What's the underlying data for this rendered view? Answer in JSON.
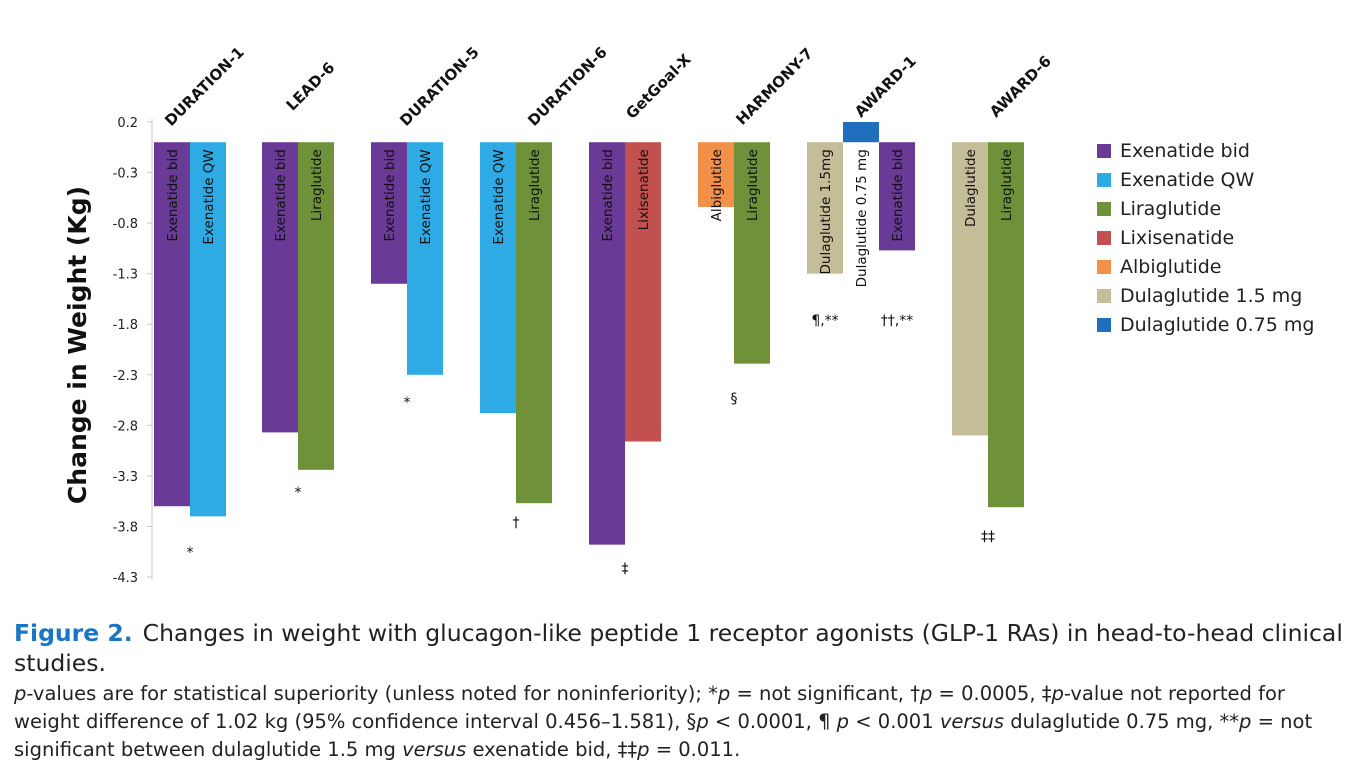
{
  "chart_data": {
    "type": "bar",
    "ylabel": "Change in Weight (Kg)",
    "ylim": [
      -4.3,
      0.2
    ],
    "yticks": [
      "0.2",
      "-0.3",
      "-0.8",
      "-1.3",
      "-1.8",
      "-2.3",
      "-2.8",
      "-3.3",
      "-3.8",
      "-4.3"
    ],
    "grid": false,
    "legend_position": "right",
    "series": [
      {
        "name": "Exenatide bid",
        "color": "#6a3a97"
      },
      {
        "name": "Exenatide QW",
        "color": "#2eaae4"
      },
      {
        "name": "Liraglutide",
        "color": "#6f913a"
      },
      {
        "name": "Lixisenatide",
        "color": "#c2504e"
      },
      {
        "name": "Albiglutide",
        "color": "#f28f49"
      },
      {
        "name": "Dulaglutide 1.5 mg",
        "color": "#c5bc98"
      },
      {
        "name": "Dulaglutide 0.75 mg",
        "color": "#1f6fbd"
      }
    ],
    "studies": [
      {
        "name": "DURATION-1",
        "annotation": "*",
        "bars": [
          {
            "series": 0,
            "label": "Exenatide bid",
            "value": -3.6
          },
          {
            "series": 1,
            "label": "Exenatide QW",
            "value": -3.7
          }
        ]
      },
      {
        "name": "LEAD-6",
        "annotation": "*",
        "bars": [
          {
            "series": 0,
            "label": "Exenatide bid",
            "value": -2.87
          },
          {
            "series": 2,
            "label": "Liraglutide",
            "value": -3.24
          }
        ]
      },
      {
        "name": "DURATION-5",
        "annotation": "*",
        "bars": [
          {
            "series": 0,
            "label": "Exenatide bid",
            "value": -1.4
          },
          {
            "series": 1,
            "label": "Exenatide QW",
            "value": -2.3
          }
        ]
      },
      {
        "name": "DURATION-6",
        "annotation": "†",
        "bars": [
          {
            "series": 1,
            "label": "Exenatide QW",
            "value": -2.68
          },
          {
            "series": 2,
            "label": "Liraglutide",
            "value": -3.57
          }
        ]
      },
      {
        "name": "GetGoal-X",
        "annotation": "‡",
        "bars": [
          {
            "series": 0,
            "label": "Exenatide bid",
            "value": -3.98
          },
          {
            "series": 3,
            "label": "Lixisenatide",
            "value": -2.96
          }
        ]
      },
      {
        "name": "HARMONY-7",
        "annotation": "§",
        "bars": [
          {
            "series": 4,
            "label": "Albiglutide",
            "value": -0.64
          },
          {
            "series": 2,
            "label": "Liraglutide",
            "value": -2.19
          }
        ]
      },
      {
        "name": "AWARD-1",
        "annotation": "",
        "bars": [
          {
            "series": 5,
            "label": "Dulaglutide 1.5mg",
            "value": -1.3,
            "note": "¶,**"
          },
          {
            "series": 6,
            "label": "Dulaglutide 0.75 mg",
            "value": 0.2,
            "note": ""
          },
          {
            "series": 0,
            "label": "Exenatide bid",
            "value": -1.07,
            "note": "††,**"
          }
        ]
      },
      {
        "name": "AWARD-6",
        "annotation": "‡‡",
        "bars": [
          {
            "series": 5,
            "label": "Dulaglutide",
            "value": -2.9
          },
          {
            "series": 2,
            "label": "Liraglutide",
            "value": -3.61
          }
        ]
      }
    ]
  },
  "caption": {
    "figure_number": "Figure 2.",
    "title": "Changes in weight with glucagon-like peptide 1 receptor agonists (GLP-1 RAs) in head-to-head clinical studies.",
    "note_parts": {
      "p1": "p",
      "t1": "-values are for statistical superiority (unless noted for noninferiority); *",
      "p2": "p",
      "t2": " = not significant, †",
      "p3": "p",
      "t3": " = 0.0005, ‡",
      "p4": "p",
      "t4": "-value not reported for weight difference of 1.02 kg (95% confidence interval 0.456–1.581), §",
      "p5": "p",
      "t5": " < 0.0001, ¶ ",
      "p6": "p",
      "t6": " < 0.001 ",
      "v1": "versus",
      "t7": " dulaglutide 0.75 mg, **",
      "p7": "p",
      "t8": " = not significant between dulaglutide 1.5 mg ",
      "v2": "versus",
      "t9": " exenatide bid, ‡‡",
      "p8": "p",
      "t10": " = 0.011."
    }
  }
}
